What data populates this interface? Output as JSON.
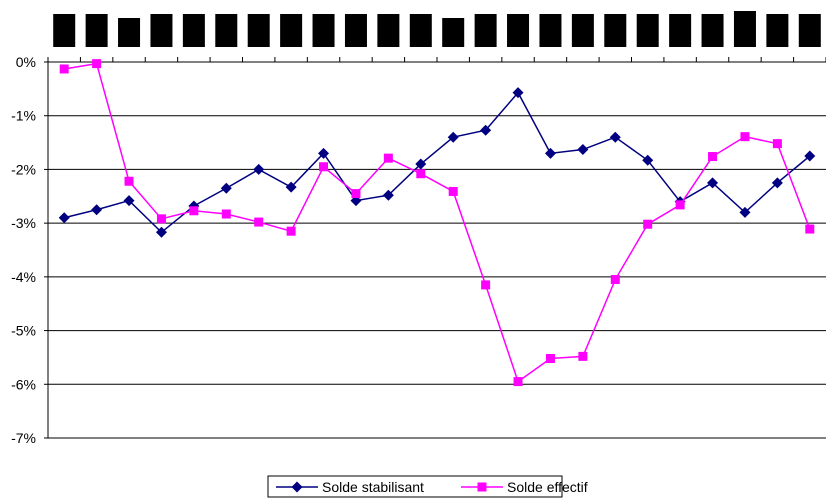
{
  "chart_data": {
    "type": "line",
    "title": "",
    "xlabel": "",
    "ylabel": "",
    "y_tick_labels": [
      "0%",
      "-1%",
      "-2%",
      "-3%",
      "-4%",
      "-5%",
      "-6%",
      "-7%"
    ],
    "ylim": [
      -7,
      0
    ],
    "y_grid": true,
    "x_tick_labels_obscured": true,
    "x_count": 24,
    "legend_position": "bottom-center",
    "series": [
      {
        "name": "Solde stabilisant",
        "color": "#000080",
        "marker": "diamond",
        "values": [
          -2.9,
          -2.75,
          -2.58,
          -3.17,
          -2.68,
          -2.35,
          -2.0,
          -2.33,
          -1.7,
          -2.58,
          -2.48,
          -1.9,
          -1.4,
          -1.27,
          -0.57,
          -1.7,
          -1.63,
          -1.4,
          -1.83,
          -2.6,
          -2.25,
          -2.8,
          -2.25,
          -1.75
        ]
      },
      {
        "name": "Solde effectif",
        "color": "#ff00ff",
        "marker": "square",
        "values": [
          -0.13,
          -0.03,
          -2.22,
          -2.92,
          -2.77,
          -2.83,
          -2.98,
          -3.15,
          -1.95,
          -2.45,
          -1.79,
          -2.08,
          -2.41,
          -4.15,
          -5.95,
          -5.52,
          -5.48,
          -4.05,
          -3.02,
          -2.66,
          -1.76,
          -1.39,
          -1.52,
          -3.11
        ]
      }
    ]
  },
  "redaction_color": "#000000"
}
